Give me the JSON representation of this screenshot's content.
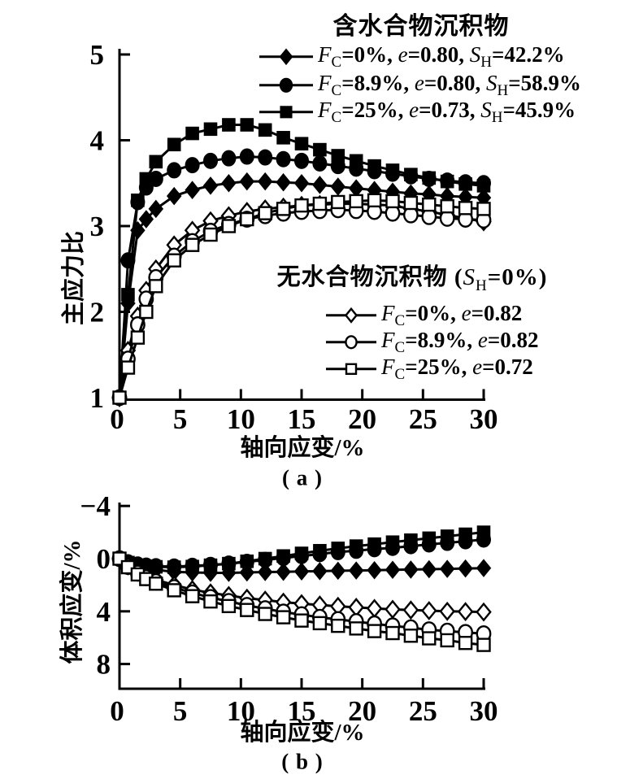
{
  "figure": {
    "panel_a": {
      "caption": "( a )",
      "xlabel": "轴向应变/%",
      "ylabel": "主应力比",
      "legend_hydrate": {
        "title": "含水合物沉积物",
        "items": [
          {
            "v1": "F",
            "s1": "C",
            "t1": "=0%, ",
            "v2": "e",
            "t2": "=0.80, ",
            "v3": "S",
            "s3": "H",
            "t3": "=42.2%"
          },
          {
            "v1": "F",
            "s1": "C",
            "t1": "=8.9%, ",
            "v2": "e",
            "t2": "=0.80, ",
            "v3": "S",
            "s3": "H",
            "t3": "=58.9%"
          },
          {
            "v1": "F",
            "s1": "C",
            "t1": "=25%, ",
            "v2": "e",
            "t2": "=0.73, ",
            "v3": "S",
            "s3": "H",
            "t3": "=45.9%"
          }
        ]
      },
      "legend_nohydrate": {
        "title_pre": "无水合物沉积物 (",
        "title_var": "S",
        "title_sub": "H",
        "title_post": "=0%)",
        "items": [
          {
            "v1": "F",
            "s1": "C",
            "t1": "=0%, ",
            "v2": "e",
            "t2": "=0.82"
          },
          {
            "v1": "F",
            "s1": "C",
            "t1": "=8.9%, ",
            "v2": "e",
            "t2": "=0.82"
          },
          {
            "v1": "F",
            "s1": "C",
            "t1": "=25%, ",
            "v2": "e",
            "t2": "=0.72"
          }
        ]
      }
    },
    "panel_b": {
      "caption": "( b )",
      "xlabel": "轴向应变/%",
      "ylabel": "体积应变/%"
    },
    "colors": {
      "line": "#000000",
      "background": "#ffffff",
      "open_marker_fill": "#ffffff"
    }
  },
  "chart_data": [
    {
      "id": "a",
      "type": "line",
      "title": "含水合物沉积物",
      "xlabel": "轴向应变/%",
      "ylabel": "主应力比",
      "xlim": [
        0,
        30
      ],
      "ylim": [
        1,
        5
      ],
      "xticks": [
        0,
        5,
        10,
        15,
        20,
        25,
        30
      ],
      "xtick_labels": [
        "0",
        "5",
        "10",
        "15",
        "20",
        "25",
        "30"
      ],
      "yticks": [
        1,
        2,
        3,
        4,
        5
      ],
      "ytick_labels": [
        "1",
        "2",
        "3",
        "4",
        "5"
      ],
      "grid": false,
      "legend_position": "top-right",
      "x": [
        0,
        0.7,
        1.5,
        2.2,
        3,
        4.5,
        6,
        7.5,
        9,
        10.5,
        12,
        13.5,
        15,
        16.5,
        18,
        19.5,
        21,
        22.5,
        24,
        25.5,
        27,
        28.5,
        30
      ],
      "series": [
        {
          "name": "FC=0%, e=0.80, SH=42.2%",
          "group": "含水合物沉积物",
          "marker": "diamond",
          "filled": true,
          "values": [
            1.0,
            2.1,
            2.95,
            3.08,
            3.2,
            3.35,
            3.42,
            3.47,
            3.5,
            3.52,
            3.52,
            3.51,
            3.5,
            3.48,
            3.46,
            3.44,
            3.42,
            3.4,
            3.38,
            3.37,
            3.35,
            3.34,
            3.33
          ]
        },
        {
          "name": "FC=8.9%, e=0.80, SH=58.9%",
          "group": "含水合物沉积物",
          "marker": "circle",
          "filled": true,
          "values": [
            1.0,
            2.6,
            3.28,
            3.45,
            3.55,
            3.65,
            3.71,
            3.76,
            3.79,
            3.81,
            3.8,
            3.78,
            3.76,
            3.73,
            3.7,
            3.67,
            3.64,
            3.61,
            3.58,
            3.55,
            3.53,
            3.51,
            3.5
          ]
        },
        {
          "name": "FC=25%, e=0.73, SH=45.9%",
          "group": "含水合物沉积物",
          "marker": "square",
          "filled": true,
          "values": [
            1.0,
            2.2,
            3.3,
            3.55,
            3.75,
            3.95,
            4.08,
            4.13,
            4.18,
            4.18,
            4.12,
            4.03,
            3.96,
            3.89,
            3.82,
            3.76,
            3.7,
            3.65,
            3.6,
            3.56,
            3.52,
            3.49,
            3.47
          ]
        },
        {
          "name": "FC=0%, e=0.82",
          "group": "无水合物沉积物 (SH=0%)",
          "marker": "diamond",
          "filled": false,
          "values": [
            1.0,
            1.55,
            1.95,
            2.25,
            2.5,
            2.78,
            2.95,
            3.06,
            3.12,
            3.17,
            3.2,
            3.22,
            3.24,
            3.25,
            3.26,
            3.26,
            3.25,
            3.24,
            3.2,
            3.17,
            3.13,
            3.09,
            3.05
          ]
        },
        {
          "name": "FC=8.9%, e=0.82",
          "group": "无水合物沉积物 (SH=0%)",
          "marker": "circle",
          "filled": false,
          "values": [
            1.0,
            1.45,
            1.85,
            2.15,
            2.4,
            2.65,
            2.82,
            2.94,
            3.02,
            3.08,
            3.12,
            3.15,
            3.17,
            3.18,
            3.19,
            3.18,
            3.17,
            3.15,
            3.13,
            3.11,
            3.09,
            3.08,
            3.07
          ]
        },
        {
          "name": "FC=25%, e=0.72",
          "group": "无水合物沉积物 (SH=0%)",
          "marker": "square",
          "filled": false,
          "values": [
            1.0,
            1.35,
            1.7,
            2.0,
            2.3,
            2.6,
            2.78,
            2.9,
            3.0,
            3.08,
            3.15,
            3.2,
            3.24,
            3.26,
            3.28,
            3.29,
            3.3,
            3.29,
            3.27,
            3.25,
            3.23,
            3.21,
            3.2
          ]
        }
      ]
    },
    {
      "id": "b",
      "type": "line",
      "title": "",
      "xlabel": "轴向应变/%",
      "ylabel": "体积应变/%",
      "xlim": [
        0,
        30
      ],
      "ylim": [
        -4,
        10
      ],
      "y_inverted": true,
      "xticks": [
        0,
        5,
        10,
        15,
        20,
        25,
        30
      ],
      "xtick_labels": [
        "0",
        "5",
        "10",
        "15",
        "20",
        "25",
        "30"
      ],
      "yticks": [
        -4,
        0,
        4,
        8
      ],
      "ytick_labels": [
        "−4",
        "0",
        "4",
        "8"
      ],
      "grid": false,
      "x": [
        0,
        0.7,
        1.5,
        2.2,
        3,
        4.5,
        6,
        7.5,
        9,
        10.5,
        12,
        13.5,
        15,
        16.5,
        18,
        19.5,
        21,
        22.5,
        24,
        25.5,
        27,
        28.5,
        30
      ],
      "series": [
        {
          "name": "FC=0%, e=0.80, SH=42.2%",
          "group": "含水合物沉积物",
          "marker": "diamond",
          "filled": true,
          "values": [
            0,
            0.35,
            0.6,
            0.73,
            0.85,
            1.0,
            1.05,
            1.08,
            1.08,
            1.05,
            1.02,
            1.0,
            0.97,
            0.95,
            0.92,
            0.9,
            0.88,
            0.85,
            0.83,
            0.8,
            0.78,
            0.75,
            0.72
          ]
        },
        {
          "name": "FC=8.9%, e=0.80, SH=58.9%",
          "group": "含水合物沉积物",
          "marker": "circle",
          "filled": true,
          "values": [
            0,
            0.28,
            0.45,
            0.53,
            0.58,
            0.6,
            0.55,
            0.48,
            0.38,
            0.25,
            0.1,
            -0.05,
            -0.2,
            -0.35,
            -0.5,
            -0.6,
            -0.72,
            -0.82,
            -0.95,
            -1.08,
            -1.2,
            -1.32,
            -1.45
          ]
        },
        {
          "name": "FC=25%, e=0.73, SH=45.9%",
          "group": "含水合物沉积物",
          "marker": "square",
          "filled": true,
          "values": [
            0,
            0.3,
            0.5,
            0.57,
            0.62,
            0.65,
            0.6,
            0.5,
            0.38,
            0.2,
            0.0,
            -0.2,
            -0.4,
            -0.6,
            -0.78,
            -0.95,
            -1.1,
            -1.25,
            -1.4,
            -1.55,
            -1.7,
            -1.85,
            -2.0
          ]
        },
        {
          "name": "FC=0%, e=0.82",
          "group": "无水合物沉积物 (SH=0%)",
          "marker": "diamond",
          "filled": false,
          "values": [
            0,
            0.55,
            1.0,
            1.3,
            1.6,
            2.0,
            2.35,
            2.6,
            2.8,
            3.0,
            3.15,
            3.3,
            3.42,
            3.52,
            3.62,
            3.7,
            3.78,
            3.85,
            3.9,
            3.95,
            4.0,
            4.02,
            4.05
          ]
        },
        {
          "name": "FC=8.9%, e=0.82",
          "group": "无水合物沉积物 (SH=0%)",
          "marker": "circle",
          "filled": false,
          "values": [
            0,
            0.6,
            1.1,
            1.45,
            1.75,
            2.2,
            2.6,
            2.95,
            3.25,
            3.55,
            3.8,
            4.05,
            4.25,
            4.45,
            4.62,
            4.78,
            4.95,
            5.1,
            5.25,
            5.4,
            5.5,
            5.6,
            5.7
          ]
        },
        {
          "name": "FC=25%, e=0.72",
          "group": "无水合物沉积物 (SH=0%)",
          "marker": "square",
          "filled": false,
          "values": [
            0,
            0.65,
            1.2,
            1.55,
            1.9,
            2.4,
            2.85,
            3.25,
            3.6,
            3.9,
            4.2,
            4.45,
            4.7,
            4.9,
            5.1,
            5.3,
            5.5,
            5.65,
            5.85,
            6.05,
            6.2,
            6.4,
            6.55
          ]
        }
      ]
    }
  ]
}
